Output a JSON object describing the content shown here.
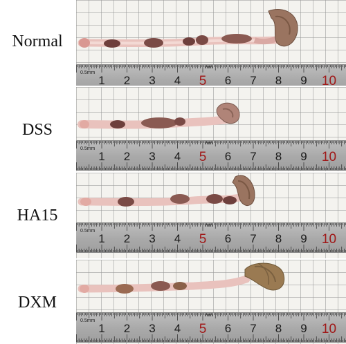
{
  "groups": [
    {
      "label": "Normal"
    },
    {
      "label": "DSS"
    },
    {
      "label": "HA15"
    },
    {
      "label": "DXM"
    }
  ],
  "ruler": {
    "unit_label": "0.5mm",
    "mm_label": "mm",
    "numbers": [
      "1",
      "2",
      "3",
      "4",
      "5",
      "6",
      "7",
      "8",
      "9",
      "10"
    ],
    "highlight": [
      "5",
      "10"
    ]
  },
  "colors": {
    "colon_tissue": "#e9c2bd",
    "fecal_pellet": "#7a4a45",
    "cecum": "#9a7460",
    "ruler_red": "#a01818"
  }
}
